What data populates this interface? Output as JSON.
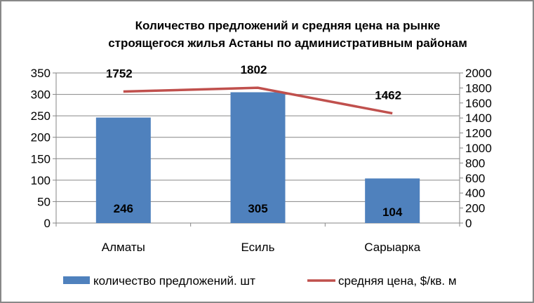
{
  "chart_data": {
    "type": "bar+line",
    "title_lines": [
      "Количество предложений и средняя цена на рынке",
      "строящегося жилья Астаны по административным районам"
    ],
    "categories": [
      "Алматы",
      "Есиль",
      "Сарыарка"
    ],
    "series": [
      {
        "name": "количество предложений. шт",
        "type": "bar",
        "axis": "left",
        "values": [
          246,
          305,
          104
        ],
        "color": "#4f81bd"
      },
      {
        "name": "средняя цена, $/кв. м",
        "type": "line",
        "axis": "right",
        "values": [
          1752,
          1802,
          1462
        ],
        "color": "#c0504d"
      }
    ],
    "left_axis": {
      "ylim": [
        0,
        350
      ],
      "ticks": [
        0,
        50,
        100,
        150,
        200,
        250,
        300,
        350
      ]
    },
    "right_axis": {
      "ylim": [
        0,
        2000
      ],
      "ticks": [
        0,
        200,
        400,
        600,
        800,
        1000,
        1200,
        1400,
        1600,
        1800,
        2000
      ]
    },
    "legend_position": "bottom",
    "grid": true
  }
}
